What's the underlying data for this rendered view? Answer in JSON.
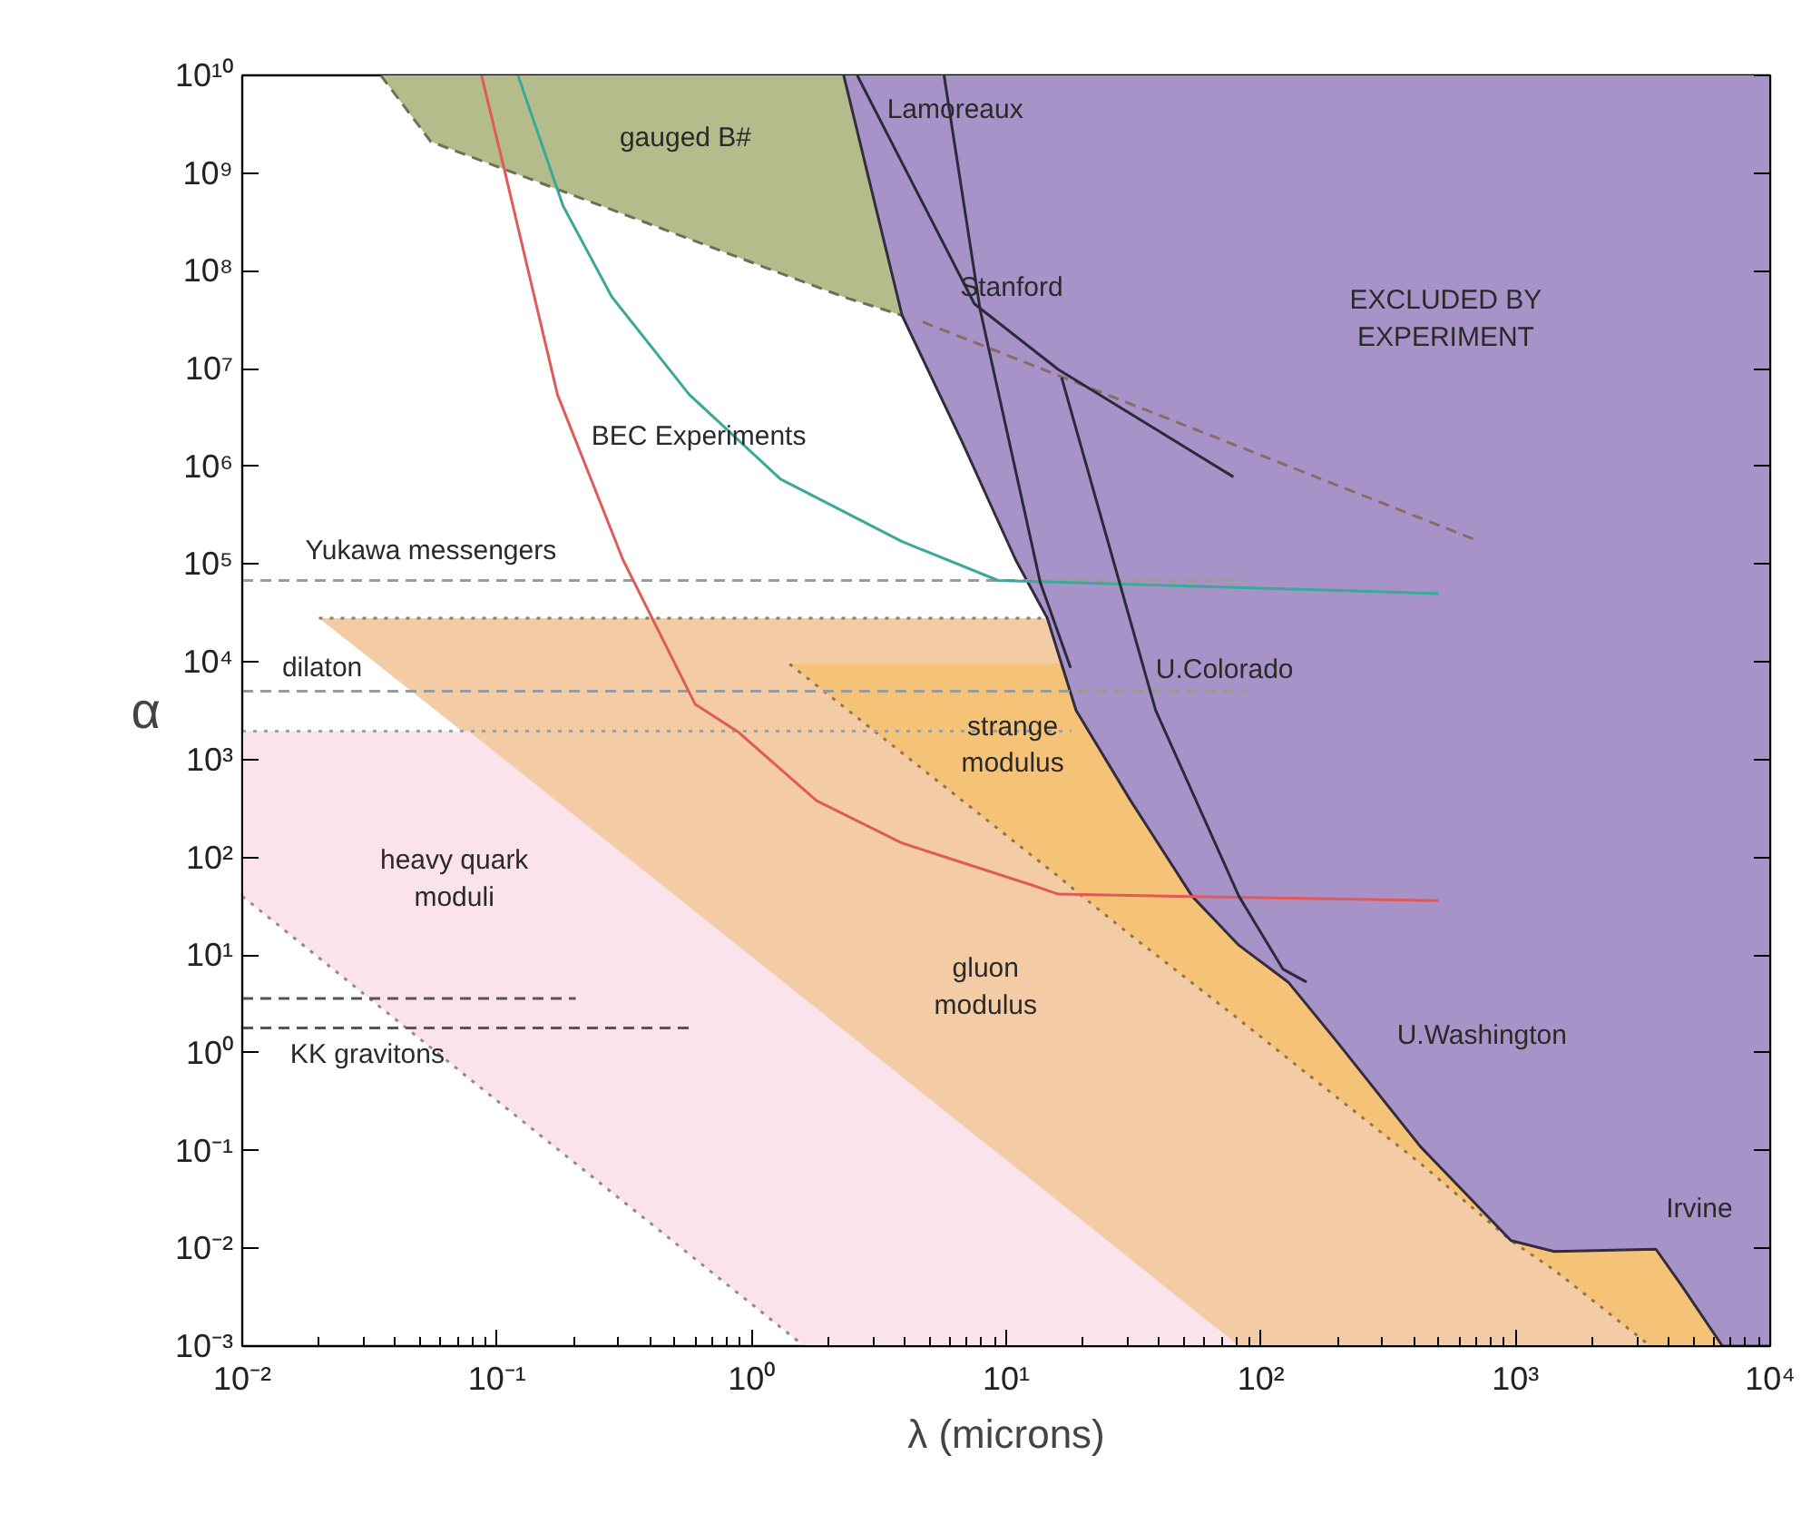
{
  "chart_data": {
    "type": "line",
    "xlabel": "λ (microns)",
    "ylabel": "α",
    "log": "xy",
    "xlim": [
      0.01,
      10000
    ],
    "ylim": [
      0.001,
      10000000000
    ],
    "xticks": [
      {
        "value": 0.01,
        "label": "10⁻²"
      },
      {
        "value": 0.1,
        "label": "10⁻¹"
      },
      {
        "value": 1,
        "label": "10⁰"
      },
      {
        "value": 10,
        "label": "10¹"
      },
      {
        "value": 100,
        "label": "10²"
      },
      {
        "value": 1000,
        "label": "10³"
      },
      {
        "value": 10000,
        "label": "10⁴"
      }
    ],
    "yticks": [
      {
        "value": 0.001,
        "label": "10⁻³"
      },
      {
        "value": 0.01,
        "label": "10⁻²"
      },
      {
        "value": 0.1,
        "label": "10⁻¹"
      },
      {
        "value": 1,
        "label": "10⁰"
      },
      {
        "value": 10,
        "label": "10¹"
      },
      {
        "value": 100,
        "label": "10²"
      },
      {
        "value": 1000,
        "label": "10³"
      },
      {
        "value": 10000,
        "label": "10⁴"
      },
      {
        "value": 100000,
        "label": "10⁵"
      },
      {
        "value": 1000000,
        "label": "10⁶"
      },
      {
        "value": 10000000,
        "label": "10⁷"
      },
      {
        "value": 100000000,
        "label": "10⁸"
      },
      {
        "value": 1000000000,
        "label": "10⁹"
      },
      {
        "value": 10000000000,
        "label": "10¹⁰"
      }
    ],
    "grid": false,
    "series": [
      {
        "color": "#927a63",
        "line_style": "dotted",
        "x": [
          0.02,
          14.5,
          18.8,
          30.8,
          53.7,
          82,
          128,
          199,
          423,
          960,
          1420,
          3560,
          4480,
          6500
        ],
        "values": [
          28000,
          28000,
          null,
          null,
          null,
          null,
          null,
          null,
          null,
          null,
          null,
          null,
          null,
          null
        ],
        "upper": [
          28000,
          28000,
          3200,
          380,
          40,
          12.6,
          5.3,
          1.3,
          0.11,
          0.012,
          0.0093,
          0.0098,
          0.0042,
          0.001
        ],
        "lower": [
          28000,
          0.037,
          0.0215,
          0.0077,
          0.0024,
          0.001,
          0.001,
          0.001,
          0.001,
          0.001,
          0.001,
          0.001,
          0.001,
          0.001
        ]
      },
      {
        "color": "#937548",
        "line_style": "dotted",
        "x": [
          1.41,
          16.5,
          18.8,
          30.8,
          53.7,
          82,
          128,
          199,
          423,
          960,
          1420,
          3390,
          3560,
          4480,
          6500
        ],
        "values": [
          9500,
          60,
          45,
          16,
          5.2,
          2.2,
          0.87,
          0.35,
          0.074,
          0.012,
          0.006,
          0.001,
          null,
          null,
          null
        ],
        "upper": [
          9500,
          9500,
          3200,
          380,
          40,
          12.6,
          5.3,
          1.3,
          0.11,
          0.012,
          0.0093,
          0.0098,
          0.0098,
          0.0042,
          0.001
        ],
        "lower": [
          9500,
          60,
          45,
          16,
          5.2,
          2.2,
          0.87,
          0.35,
          0.074,
          0.012,
          0.006,
          0.001,
          0.001,
          0.001,
          0.001
        ]
      },
      {
        "color": "#96888d",
        "line_style": "dotted",
        "x": [
          0.01,
          0.0776,
          1.61,
          82
        ],
        "values": [
          40,
          0.55,
          0.001,
          null
        ],
        "upper": [
          1950,
          1950,
          3.6,
          0.001
        ],
        "lower": [
          40,
          0.55,
          0.001,
          0.001
        ]
      },
      {
        "color": "#6c7154",
        "line_style": "dashed",
        "x": [
          0.035,
          0.055,
          2.3,
          3.9
        ],
        "values": [
          10000000000,
          2100000000,
          54000000,
          35000000
        ],
        "upper": [
          10000000000,
          10000000000,
          10000000000,
          35000000
        ],
        "lower": [
          10000000000,
          2100000000,
          54000000,
          35000000
        ]
      },
      {
        "color": "#322c3c",
        "line_style": "solid",
        "x": [
          2.3,
          3.9,
          6.7,
          10.9,
          14.5,
          18.8,
          30.8,
          53.7,
          82,
          128,
          199,
          423,
          960,
          1420,
          3560,
          4480,
          6500,
          10000
        ],
        "values": [
          10000000000,
          35000000,
          1800000,
          110000,
          28000,
          3200,
          380,
          40,
          12.6,
          5.3,
          1.3,
          0.11,
          0.012,
          0.0093,
          0.0098,
          0.0042,
          0.001,
          0.001
        ],
        "upper": [
          10000000000,
          10000000000,
          10000000000,
          10000000000,
          10000000000,
          10000000000,
          10000000000,
          10000000000,
          10000000000,
          10000000000,
          10000000000,
          10000000000,
          10000000000,
          10000000000,
          10000000000,
          10000000000,
          10000000000,
          10000000000
        ],
        "lower": [
          10000000000,
          35000000,
          1800000,
          110000,
          28000,
          3200,
          380,
          40,
          12.6,
          5.3,
          1.3,
          0.11,
          0.012,
          0.0093,
          0.0098,
          0.0042,
          0.001,
          0.001
        ]
      },
      {
        "color": "#9a9a9a",
        "line_style": "dashed",
        "x": [
          0.01,
          88
        ],
        "values": [
          68000,
          68000
        ]
      },
      {
        "color": "#9a9a9a",
        "line_style": "dashed",
        "x": [
          0.01,
          88
        ],
        "values": [
          5000,
          5000
        ]
      },
      {
        "color": "#a0a0a0",
        "line_style": "dotted",
        "x": [
          0.01,
          18
        ],
        "values": [
          1950,
          1950
        ]
      },
      {
        "color": "#8a6a66",
        "line_style": "dashed",
        "x": [
          4.7,
          725
        ],
        "values": [
          30000000,
          170000
        ]
      },
      {
        "color": "#e05a5a",
        "line_style": "solid",
        "x": [
          0.087,
          0.106,
          0.173,
          0.313,
          0.6,
          0.89,
          1.8,
          3.9,
          12.9,
          16,
          500
        ],
        "values": [
          10000000000,
          1200000000,
          5400000,
          110000,
          3700,
          1900,
          380,
          140,
          51,
          42,
          36
        ]
      },
      {
        "color": "#3aa89a",
        "line_style": "solid",
        "x": [
          0.121,
          0.182,
          0.283,
          0.57,
          1.3,
          3.9,
          9.3,
          500
        ],
        "values": [
          10000000000,
          460000000,
          54000000,
          5400000,
          740000,
          170000,
          68000,
          50000
        ]
      },
      {
        "color": "#2a2a3a",
        "line_style": "solid",
        "x": [
          2.6,
          7.5,
          16,
          78
        ],
        "values": [
          10000000000,
          46000000,
          9800000,
          780000
        ]
      },
      {
        "color": "#2a2a3a",
        "line_style": "solid",
        "x": [
          5.7,
          7.9,
          13.6,
          17.9
        ],
        "values": [
          10000000000,
          40000000,
          65000,
          8700
        ]
      },
      {
        "color": "#2a2a3a",
        "line_style": "solid",
        "x": [
          16.5,
          38.6,
          82,
          122,
          151
        ],
        "values": [
          8100000,
          3200,
          40,
          7.2,
          5.3
        ]
      },
      {
        "color": "#555555",
        "line_style": "dashed",
        "x": [
          0.01,
          0.204
        ],
        "values": [
          3.6,
          3.6
        ]
      },
      {
        "color": "#555555",
        "line_style": "dashed",
        "x": [
          0.01,
          0.6
        ],
        "values": [
          1.8,
          1.8
        ]
      }
    ],
    "annotations": [
      "gauged B#",
      "Lamoreaux",
      "Stanford",
      "EXCLUDED BY\nEXPERIMENT",
      "BEC Experiments",
      "Yukawa messengers",
      "dilaton",
      "U.Colorado",
      "strange\nmodulus",
      "heavy quark\nmoduli",
      "gluon\nmodulus",
      "U.Washington",
      "Irvine",
      "KK gravitons"
    ]
  }
}
